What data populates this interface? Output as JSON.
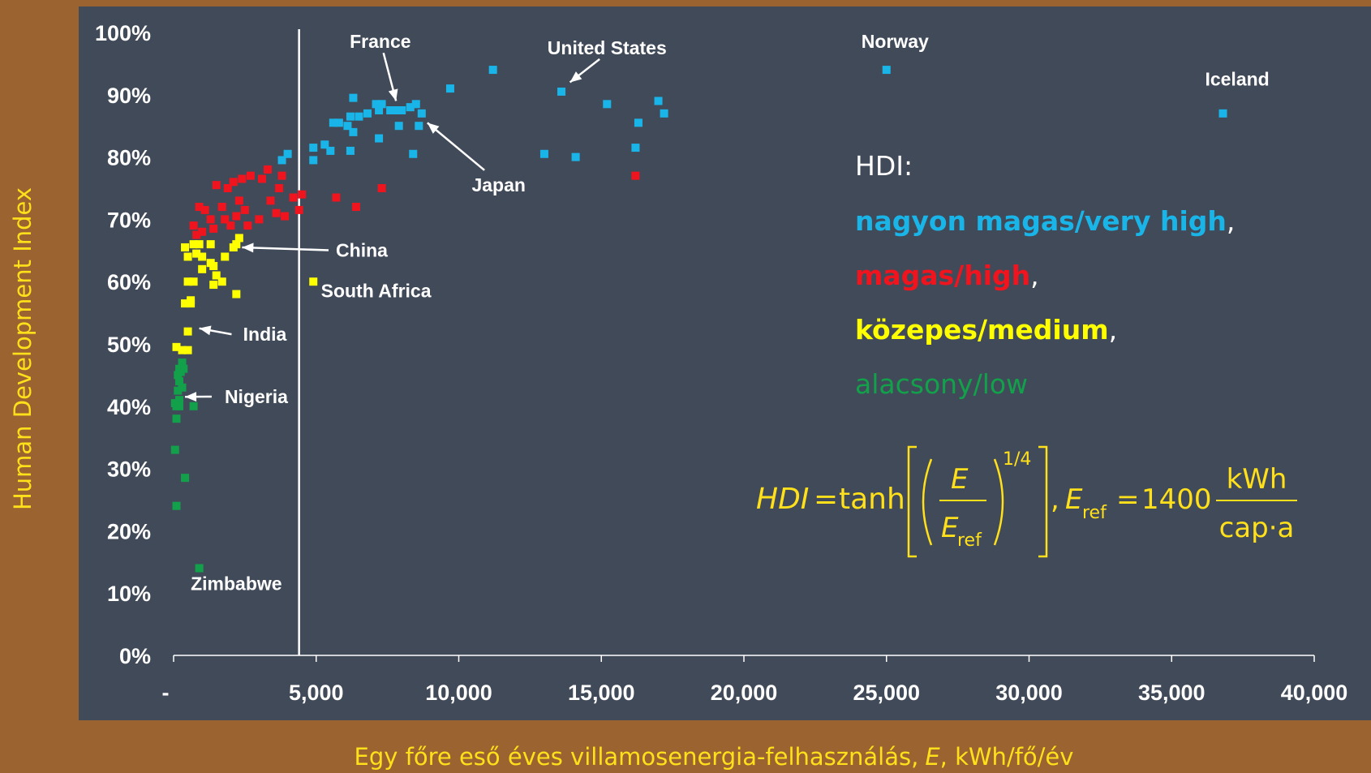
{
  "chart_data": {
    "type": "scatter",
    "xlabel": "Egy főre eső éves villamosenergia-felhasználás,",
    "xlabel_var": "E",
    "xlabel_unit": ", kWh/fő/év",
    "ylabel": "Human Development Index",
    "xlim": [
      0,
      40000
    ],
    "ylim": [
      0,
      100
    ],
    "x_ticks": [
      0,
      5000,
      10000,
      15000,
      20000,
      25000,
      30000,
      35000,
      40000
    ],
    "x_tick_labels": [
      "-",
      "5,000",
      "10,000",
      "15,000",
      "20,000",
      "25,000",
      "30,000",
      "35,000",
      "40,000"
    ],
    "y_ticks": [
      0,
      10,
      20,
      30,
      40,
      50,
      60,
      70,
      80,
      90,
      100
    ],
    "y_tick_labels": [
      "0%",
      "10%",
      "20%",
      "30%",
      "40%",
      "50%",
      "60%",
      "70%",
      "80%",
      "90%",
      "100%"
    ],
    "reference_line_x": 4400,
    "grid": false,
    "colors": {
      "very_high": "#1ab5e8",
      "high": "#f0141e",
      "medium": "#ffff00",
      "low": "#12a14a",
      "plot_bg": "#414a59",
      "frame": "#9a6330",
      "axis_title": "#ffe01a",
      "text": "#ffffff"
    },
    "series": [
      {
        "key": "very_high",
        "color": "#1ab5e8",
        "points": [
          [
            3800,
            79.5
          ],
          [
            4000,
            80.5
          ],
          [
            4900,
            79.5
          ],
          [
            4900,
            81.5
          ],
          [
            5300,
            82
          ],
          [
            5500,
            81
          ],
          [
            5600,
            85.5
          ],
          [
            5800,
            85.5
          ],
          [
            6100,
            85
          ],
          [
            6200,
            81
          ],
          [
            6200,
            86.5
          ],
          [
            6300,
            89.5
          ],
          [
            6300,
            84
          ],
          [
            6500,
            86.5
          ],
          [
            6800,
            87
          ],
          [
            7100,
            88.5
          ],
          [
            7200,
            87.5
          ],
          [
            7200,
            83
          ],
          [
            7300,
            88.5
          ],
          [
            7600,
            87.5
          ],
          [
            7800,
            87.5
          ],
          [
            7900,
            85
          ],
          [
            8000,
            87.5
          ],
          [
            8300,
            88
          ],
          [
            8400,
            80.5
          ],
          [
            8500,
            88.5
          ],
          [
            8600,
            85
          ],
          [
            8700,
            87
          ],
          [
            9700,
            91
          ],
          [
            11200,
            94
          ],
          [
            13000,
            80.5
          ],
          [
            13600,
            90.5
          ],
          [
            14100,
            80
          ],
          [
            15200,
            88.5
          ],
          [
            16200,
            81.5
          ],
          [
            16300,
            85.5
          ],
          [
            17000,
            89
          ],
          [
            17200,
            87
          ],
          [
            25000,
            94
          ],
          [
            36800,
            87
          ]
        ]
      },
      {
        "key": "high",
        "color": "#f0141e",
        "points": [
          [
            700,
            69
          ],
          [
            800,
            67.5
          ],
          [
            900,
            72
          ],
          [
            1000,
            68
          ],
          [
            1100,
            71.5
          ],
          [
            1300,
            70
          ],
          [
            1400,
            68.5
          ],
          [
            1500,
            75.5
          ],
          [
            1700,
            72
          ],
          [
            1800,
            70
          ],
          [
            1900,
            75
          ],
          [
            2000,
            69
          ],
          [
            2100,
            76
          ],
          [
            2200,
            70.5
          ],
          [
            2300,
            73
          ],
          [
            2400,
            76.5
          ],
          [
            2500,
            71.5
          ],
          [
            2600,
            69
          ],
          [
            2700,
            77
          ],
          [
            3000,
            70
          ],
          [
            3100,
            76.5
          ],
          [
            3300,
            78
          ],
          [
            3400,
            73
          ],
          [
            3600,
            71
          ],
          [
            3700,
            75
          ],
          [
            3800,
            77
          ],
          [
            3900,
            70.5
          ],
          [
            4200,
            73.5
          ],
          [
            4400,
            71.5
          ],
          [
            4500,
            74
          ],
          [
            5700,
            73.5
          ],
          [
            6400,
            72
          ],
          [
            7300,
            75
          ],
          [
            16200,
            77
          ]
        ]
      },
      {
        "key": "medium",
        "color": "#ffff00",
        "points": [
          [
            100,
            49.5
          ],
          [
            300,
            49
          ],
          [
            400,
            65.5
          ],
          [
            400,
            56.5
          ],
          [
            500,
            64
          ],
          [
            500,
            60
          ],
          [
            500,
            52
          ],
          [
            500,
            49
          ],
          [
            600,
            57
          ],
          [
            600,
            56.5
          ],
          [
            700,
            60
          ],
          [
            700,
            66
          ],
          [
            800,
            64.5
          ],
          [
            900,
            66
          ],
          [
            1000,
            62
          ],
          [
            1000,
            64
          ],
          [
            1300,
            66
          ],
          [
            1300,
            63
          ],
          [
            1400,
            59.5
          ],
          [
            1400,
            62.5
          ],
          [
            1500,
            61
          ],
          [
            1700,
            60
          ],
          [
            1800,
            64
          ],
          [
            2100,
            65.5
          ],
          [
            2200,
            58
          ],
          [
            2200,
            66
          ],
          [
            2300,
            67
          ],
          [
            4900,
            60
          ]
        ]
      },
      {
        "key": "low",
        "color": "#12a14a",
        "points": [
          [
            50,
            40.5
          ],
          [
            50,
            33
          ],
          [
            100,
            38
          ],
          [
            100,
            24
          ],
          [
            100,
            40
          ],
          [
            150,
            45
          ],
          [
            150,
            42.5
          ],
          [
            200,
            41
          ],
          [
            200,
            44
          ],
          [
            200,
            46
          ],
          [
            200,
            40
          ],
          [
            250,
            45.5
          ],
          [
            300,
            47
          ],
          [
            300,
            43
          ],
          [
            350,
            46
          ],
          [
            400,
            28.5
          ],
          [
            700,
            40
          ],
          [
            900,
            14
          ]
        ]
      }
    ],
    "annotations": [
      {
        "label": "France",
        "x": 7250,
        "y": 97.5,
        "arrow_to": [
          7800,
          89
        ]
      },
      {
        "label": "United States",
        "x": 15200,
        "y": 96.5,
        "arrow_to": [
          13900,
          92
        ]
      },
      {
        "label": "Norway",
        "x": 25300,
        "y": 97.5
      },
      {
        "label": "Iceland",
        "x": 37300,
        "y": 91.5
      },
      {
        "label": "Japan",
        "x": 11400,
        "y": 74.5,
        "arrow_to": [
          8900,
          85.5
        ]
      },
      {
        "label": "China",
        "x": 6600,
        "y": 64,
        "arrow_to": [
          2400,
          65.5
        ]
      },
      {
        "label": "South Africa",
        "x": 7100,
        "y": 57.5
      },
      {
        "label": "India",
        "x": 3200,
        "y": 50.5,
        "arrow_to": [
          900,
          52.5
        ]
      },
      {
        "label": "Nigeria",
        "x": 2900,
        "y": 40.5,
        "arrow_to": [
          400,
          41.5
        ]
      },
      {
        "label": "Zimbabwe",
        "x": 2200,
        "y": 10.5
      }
    ]
  },
  "legend": {
    "title": "HDI:",
    "entries": [
      {
        "text": "nagyon magas/very high",
        "suffix": ",",
        "color": "#1ab5e8",
        "bold": true
      },
      {
        "text": "magas/high",
        "suffix": ",",
        "color": "#f0141e",
        "bold": true
      },
      {
        "text": "közepes/medium",
        "suffix": ",",
        "color": "#ffff00",
        "bold": true
      },
      {
        "text": "alacsony/low",
        "suffix": "",
        "color": "#12a14a",
        "bold": false
      }
    ]
  },
  "formula": {
    "lhs": "HDI",
    "equals": "=",
    "func": "tanh",
    "num": "E",
    "den": "E",
    "den_sub": "ref",
    "exponent": "1/4",
    "comma": ",",
    "ref_var": "E",
    "ref_sub": "ref",
    "ref_value": "1400",
    "unit_num": "kWh",
    "unit_den": "cap·a"
  }
}
